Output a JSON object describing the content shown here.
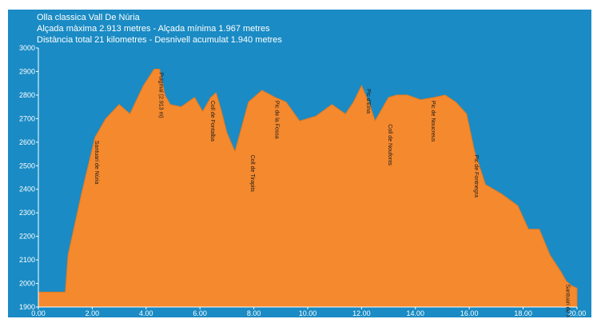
{
  "chart_data": {
    "type": "area",
    "title": "Olla classica Vall De Núria",
    "subtitle_1": "Alçada màxima 2.913 metres - Alçada mínima 1.967 metres",
    "subtitle_2": "Distància total 21 kilometres - Desnivell acumulat 1.940 metres",
    "xlabel": "",
    "ylabel": "",
    "xlim": [
      0,
      20
    ],
    "ylim": [
      1900,
      3000
    ],
    "x_ticks": [
      0,
      2,
      4,
      6,
      8,
      10,
      12,
      14,
      16,
      18,
      20
    ],
    "x_tick_labels": [
      "0.00",
      "2.00",
      "4.00",
      "6.00",
      "8.00",
      "10.00",
      "12.00",
      "14.00",
      "16.00",
      "18.00",
      "20.00"
    ],
    "y_ticks": [
      1900,
      2000,
      2100,
      2200,
      2300,
      2400,
      2500,
      2600,
      2700,
      2800,
      2900,
      3000
    ],
    "y_tick_labels": [
      "1900",
      "2000",
      "2100",
      "2200",
      "2300",
      "2400",
      "2500",
      "2600",
      "2700",
      "2800",
      "2900",
      "3000"
    ],
    "grid": false,
    "colors": {
      "background": "#1a8bc4",
      "fill": "#f5892e",
      "text": "#ffffff",
      "label": "#1a1a1a"
    },
    "x": [
      0,
      0.3,
      1.0,
      1.1,
      1.6,
      2.1,
      2.5,
      3.0,
      3.4,
      3.9,
      4.3,
      4.5,
      4.7,
      4.9,
      5.3,
      5.8,
      6.1,
      6.4,
      6.6,
      6.8,
      7.0,
      7.3,
      7.8,
      8.3,
      8.8,
      9.2,
      9.7,
      10.0,
      10.3,
      10.9,
      11.4,
      11.7,
      12.0,
      12.3,
      12.5,
      13.0,
      13.3,
      13.7,
      14.2,
      14.7,
      15.1,
      15.5,
      15.9,
      16.2,
      16.6,
      17.2,
      17.8,
      18.2,
      18.4,
      18.6,
      19.0,
      19.4,
      19.6,
      19.8,
      20.0
    ],
    "values": [
      1963,
      1963,
      1963,
      2120,
      2380,
      2620,
      2700,
      2760,
      2720,
      2840,
      2910,
      2910,
      2800,
      2760,
      2750,
      2790,
      2730,
      2790,
      2810,
      2730,
      2640,
      2560,
      2770,
      2820,
      2790,
      2770,
      2690,
      2700,
      2710,
      2760,
      2720,
      2770,
      2840,
      2760,
      2690,
      2790,
      2800,
      2800,
      2780,
      2790,
      2800,
      2770,
      2720,
      2560,
      2420,
      2380,
      2330,
      2230,
      2230,
      2230,
      2120,
      2050,
      2010,
      1990,
      1980
    ],
    "annotations": [
      {
        "x": 2.1,
        "y": 2620,
        "label": "Santuari de Núria"
      },
      {
        "x": 4.5,
        "y": 2910,
        "label": "Puigmal (2.913 m)"
      },
      {
        "x": 6.4,
        "y": 2790,
        "label": "Coll de Fontalba"
      },
      {
        "x": 7.9,
        "y": 2560,
        "label": "Coll de Tirapits"
      },
      {
        "x": 8.8,
        "y": 2790,
        "label": "Pic de la Fossa"
      },
      {
        "x": 12.2,
        "y": 2840,
        "label": "Pic d'Eina"
      },
      {
        "x": 13.0,
        "y": 2690,
        "label": "Coll de Noufonts"
      },
      {
        "x": 14.6,
        "y": 2790,
        "label": "Pic de Noucreus"
      },
      {
        "x": 16.2,
        "y": 2560,
        "label": "Pic de Fontnegra"
      },
      {
        "x": 19.6,
        "y": 2010,
        "label": "Santuari de Núria"
      }
    ]
  }
}
